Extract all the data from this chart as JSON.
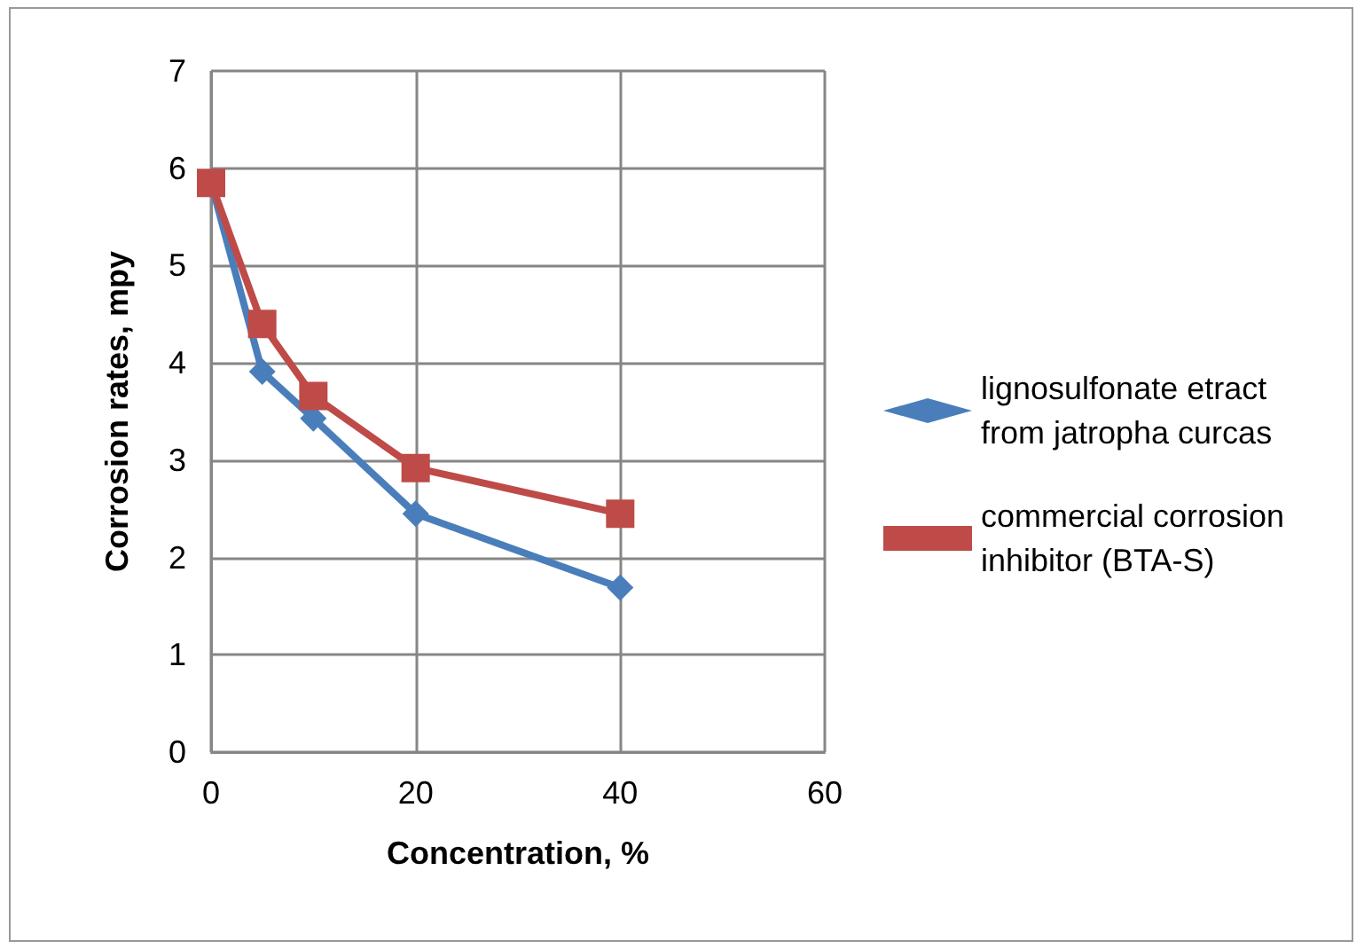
{
  "chart_data": {
    "type": "line",
    "xlabel": "Concentration, %",
    "ylabel": "Corrosion rates, mpy",
    "x": [
      0,
      5,
      10,
      20,
      40
    ],
    "series": [
      {
        "name": "lignosulfonate etract from jatropha curcas",
        "color": "#4a7ebb",
        "marker": "diamond",
        "values": [
          5.85,
          3.91,
          3.43,
          2.45,
          1.69
        ]
      },
      {
        "name": "commercial corrosion inhibitor (BTA-S)",
        "color": "#be4b48",
        "marker": "square",
        "values": [
          5.85,
          4.4,
          3.66,
          2.92,
          2.45
        ]
      }
    ],
    "xlim": [
      0,
      60
    ],
    "xticks": [
      0,
      20,
      40,
      60
    ],
    "ylim": [
      0,
      7
    ],
    "yticks": [
      0,
      1,
      2,
      3,
      4,
      5,
      6,
      7
    ],
    "grid": true,
    "legend": "right",
    "line_style": "solid"
  }
}
